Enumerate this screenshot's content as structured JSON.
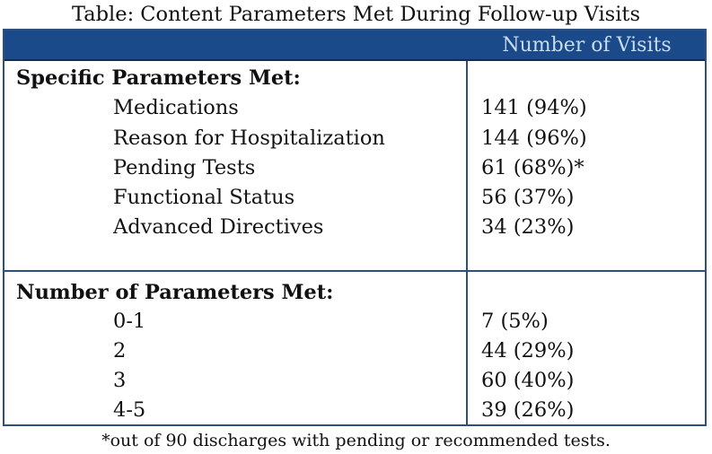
{
  "title": "Table: Content Parameters Met During Follow-up Visits",
  "table": {
    "column_header": "Number of Visits",
    "sections": [
      {
        "heading": "Specific Parameters Met:",
        "rows": [
          {
            "label": "Medications",
            "value": "141 (94%)"
          },
          {
            "label": "Reason for Hospitalization",
            "value": "144 (96%)"
          },
          {
            "label": "Pending Tests",
            "value": "61 (68%)*"
          },
          {
            "label": "Functional Status",
            "value": "56 (37%)"
          },
          {
            "label": "Advanced Directives",
            "value": "34 (23%)"
          }
        ]
      },
      {
        "heading": "Number of Parameters Met:",
        "rows": [
          {
            "label": "0-1",
            "value": "7 (5%)"
          },
          {
            "label": "2",
            "value": "44 (29%)"
          },
          {
            "label": "3",
            "value": "60 (40%)"
          },
          {
            "label": "4-5",
            "value": "39 (26%)"
          }
        ]
      }
    ]
  },
  "footnote": "*out of 90 discharges with pending or recommended tests.",
  "colors": {
    "header_background": "#1a4a8a",
    "header_text": "#c9dbf0",
    "border": "#2e4f80",
    "text": "#111111"
  }
}
